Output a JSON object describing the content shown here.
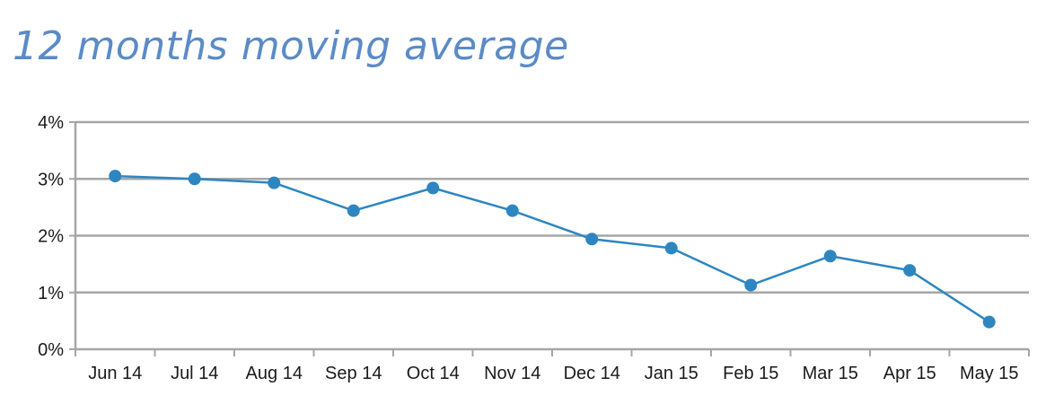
{
  "chart_data": {
    "type": "line",
    "title": "12 months moving average",
    "xlabel": "",
    "ylabel": "",
    "categories": [
      "Jun 14",
      "Jul 14",
      "Aug 14",
      "Sep 14",
      "Oct 14",
      "Nov 14",
      "Dec 14",
      "Jan 15",
      "Feb 15",
      "Mar 15",
      "Apr 15",
      "May 15"
    ],
    "series": [
      {
        "values": [
          3.05,
          3.0,
          2.93,
          2.44,
          2.84,
          2.44,
          1.94,
          1.78,
          1.13,
          1.64,
          1.39,
          0.48
        ]
      }
    ],
    "ylim": [
      0,
      4
    ],
    "yticks": [
      0,
      1,
      2,
      3,
      4
    ],
    "ytick_labels": [
      "0%",
      "1%",
      "2%",
      "3%",
      "4%"
    ],
    "grid": "horizontal",
    "legend": "none",
    "colors": {
      "line": "#2e86c1",
      "grid": "#a6a6a6",
      "title": "#5b8bc7"
    }
  }
}
